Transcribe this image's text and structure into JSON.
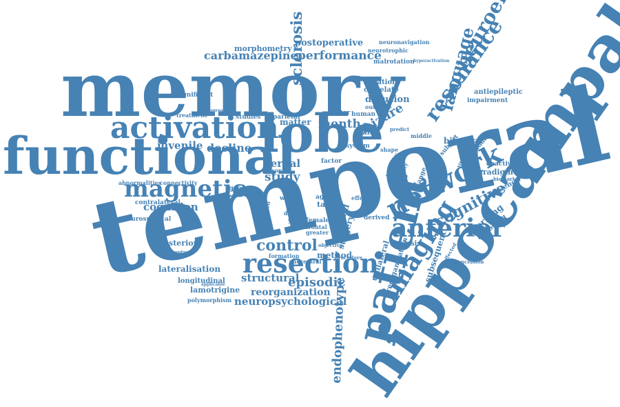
{
  "color": "#4682b4",
  "words": [
    "temporal",
    "memory",
    "hippocampal",
    "functional",
    "lobe",
    "patient",
    "activation",
    "network",
    "resection",
    "anterior",
    "magnetic",
    "imaging",
    "sclerosis",
    "resonance",
    "neuroendocrine",
    "language",
    "cognitive",
    "performance",
    "episodic",
    "control",
    "postoperative",
    "carbamazepine",
    "morphometry",
    "juvenile",
    "decline",
    "verbal",
    "cognition",
    "study",
    "structural",
    "reorganization",
    "neuropsychological",
    "endophenotype",
    "lamotrigine",
    "longitudinal",
    "lateralisation",
    "posterior",
    "neurosurgical",
    "contralateral",
    "abnormalities",
    "connectivity",
    "group",
    "white",
    "matter",
    "parietal",
    "month",
    "seizure",
    "diffusion",
    "correlate",
    "duration",
    "outcome",
    "human",
    "motor",
    "brain",
    "system",
    "factor",
    "task",
    "adult",
    "female",
    "aged",
    "deficit",
    "young",
    "frontal",
    "greater",
    "visual",
    "surgery",
    "method",
    "formation",
    "successful",
    "polymorphism",
    "derived",
    "analysis",
    "unilateral",
    "subsequent",
    "working",
    "encoding",
    "frequency",
    "paradigm",
    "deactivation",
    "bilateral",
    "subject",
    "individual",
    "antiepileptic",
    "impairment",
    "malrotation",
    "neuronavigation",
    "neurotrophic",
    "significant",
    "treatment",
    "middle",
    "shape",
    "healthy",
    "change",
    "plasticity",
    "function",
    "effect",
    "biomarker",
    "conclusion",
    "unaffected",
    "tensor",
    "correlated",
    "sibling",
    "predict",
    "objective",
    "procedure",
    "studies",
    "hyperactivation",
    "perceptual",
    "applicable",
    "widespread",
    "reorganisation"
  ]
}
